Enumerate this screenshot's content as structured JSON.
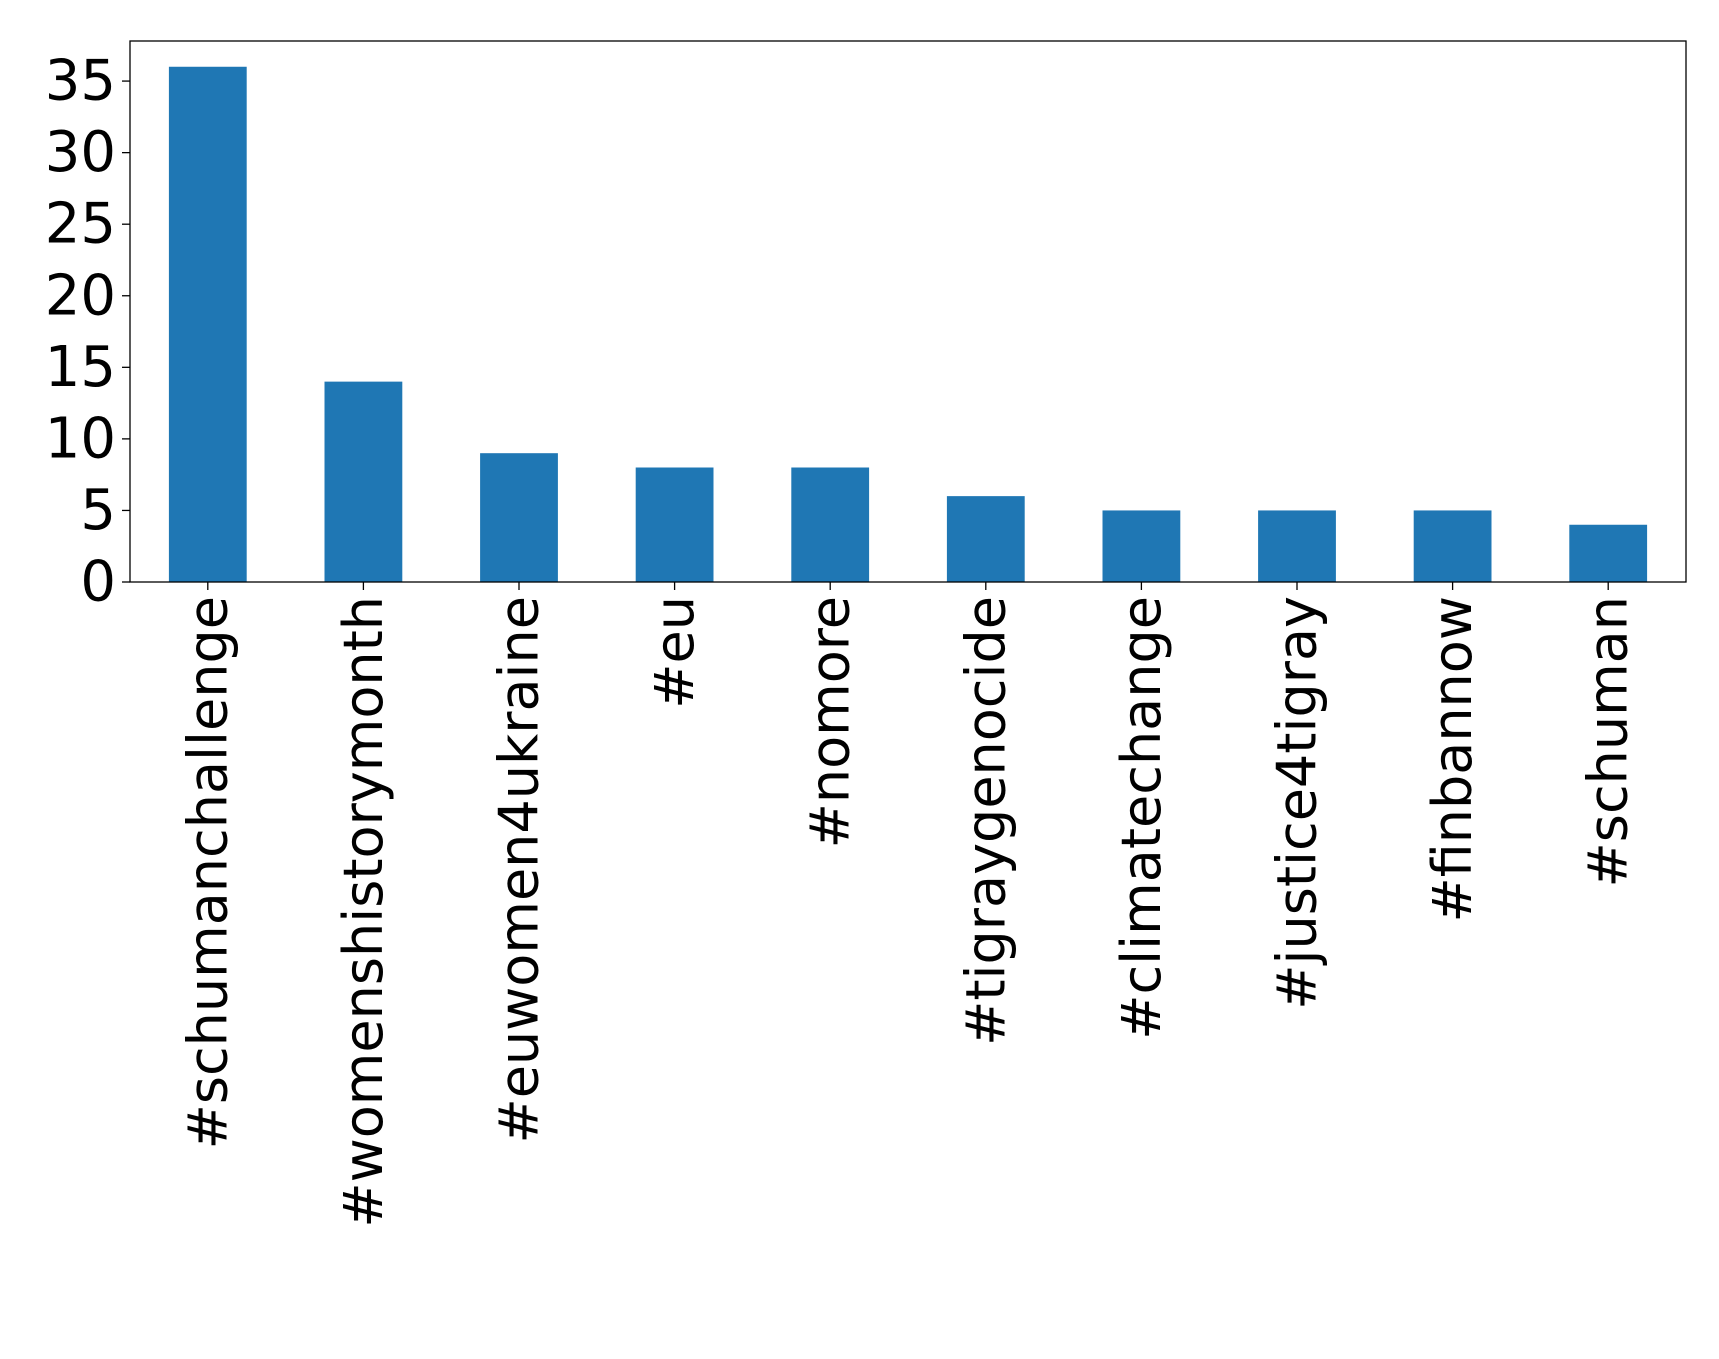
{
  "chart_data": {
    "type": "bar",
    "categories": [
      "#schumanchallenge",
      "#womenshistorymonth",
      "#euwomen4ukraine",
      "#eu",
      "#nomore",
      "#tigraygenocide",
      "#climatechange",
      "#justice4tigray",
      "#finbannow",
      "#schuman"
    ],
    "values": [
      36,
      14,
      9,
      8,
      8,
      6,
      5,
      5,
      5,
      4
    ],
    "ylim": [
      0,
      37.8
    ],
    "yticks": [
      0,
      5,
      10,
      15,
      20,
      25,
      30,
      35
    ],
    "bar_color": "#1f77b4",
    "grid": false,
    "legend": false
  }
}
